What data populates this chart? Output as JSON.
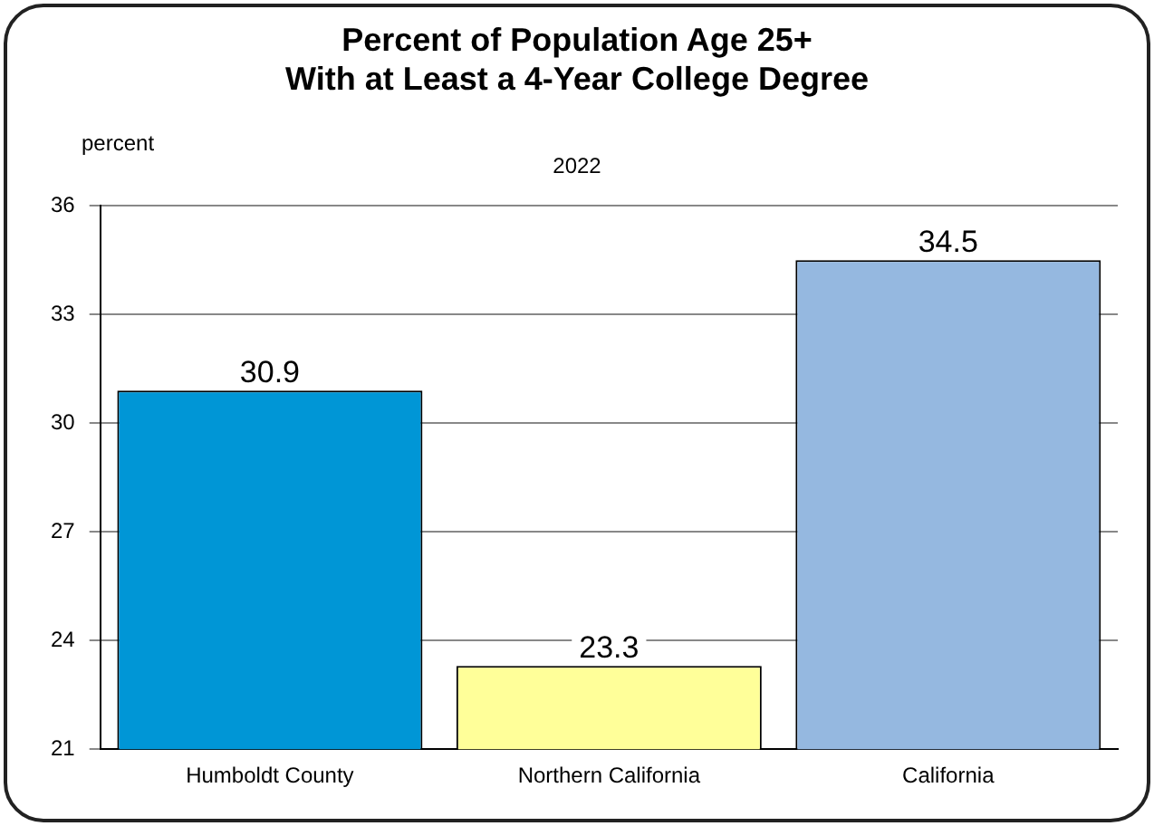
{
  "chart_data": {
    "type": "bar",
    "title": "Percent of Population Age 25+\nWith at Least a 4-Year College Degree",
    "subtitle": "2022",
    "ylabel": "percent",
    "categories": [
      "Humboldt County",
      "Northern California",
      "California"
    ],
    "values": [
      30.9,
      23.3,
      34.5
    ],
    "colors": [
      "#0096d6",
      "#ffff99",
      "#95b8e0"
    ],
    "ylim": [
      21,
      36
    ],
    "yticks": [
      21,
      24,
      27,
      30,
      33,
      36
    ],
    "grid": "y",
    "data_labels": true
  }
}
